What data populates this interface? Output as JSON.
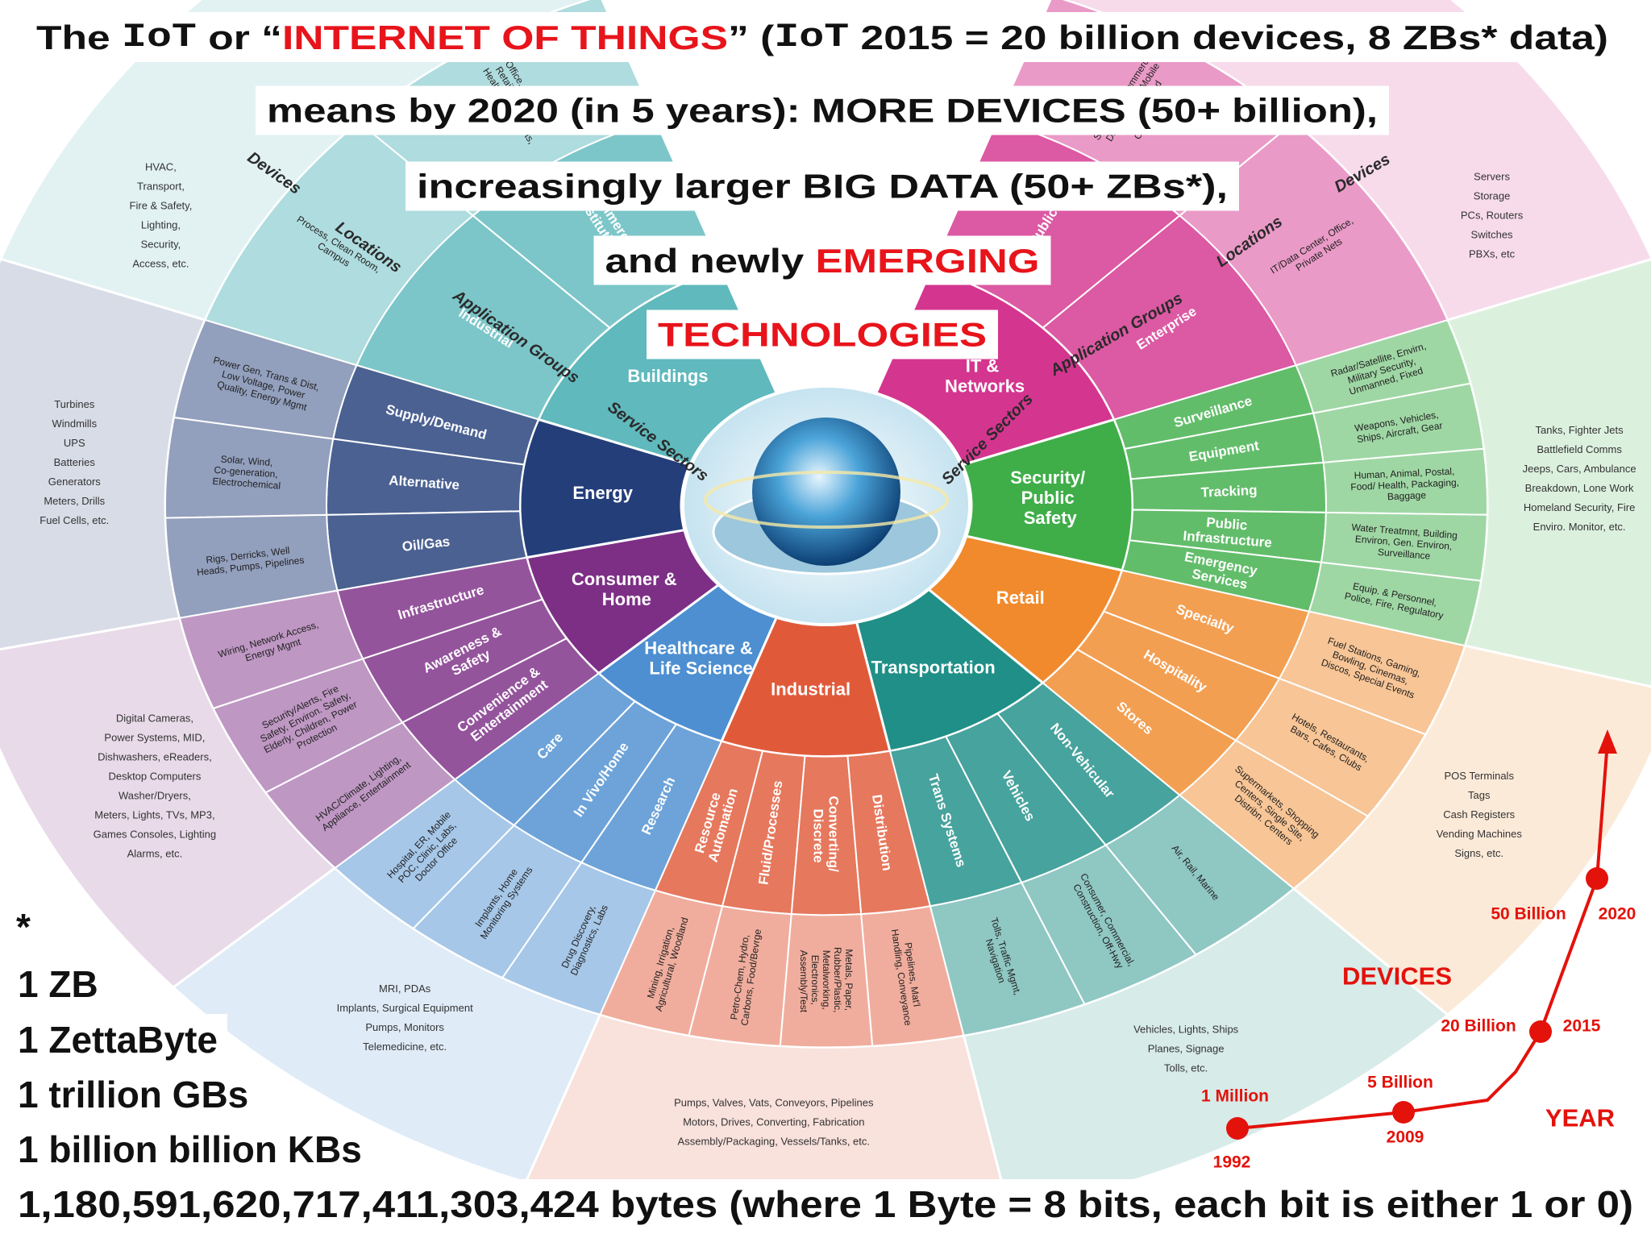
{
  "header": {
    "line1": [
      "The ",
      "IoT",
      " or “",
      "INTERNET OF THINGS",
      "” (",
      "IoT",
      " 2015 = 20 billion devices, 8 ZBs* data)"
    ],
    "line2": "means by 2020 (in 5 years): MORE DEVICES (50+ billion),",
    "line3": "increasingly larger BIG DATA (50+ ZBs*),",
    "line4": [
      "and newly ",
      "EMERGING"
    ],
    "line5": "TECHNOLOGIES"
  },
  "wheel": {
    "ring_labels": [
      "Service Sectors",
      "Application Groups",
      "Locations",
      "Devices"
    ],
    "sectors": [
      {
        "name": "Buildings",
        "groups": [
          "Commercial/ Institutional",
          "Industrial"
        ],
        "locations": [
          "Office, Education, Retail, Hospitality, Healthcare, Airports, Stadiums",
          "Process, Clean Room, Campus"
        ],
        "devices": [
          "HVAC,",
          "Transport,",
          "Fire & Safety,",
          "Lighting,",
          "Security,",
          "Access, etc."
        ]
      },
      {
        "name": "Energy",
        "groups": [
          "Supply/Demand",
          "Alternative",
          "Oil/Gas"
        ],
        "locations": [
          "Power Gen, Trans & Dist, Low Voltage, Power Quality, Energy Mgmt",
          "Solar, Wind, Co-generation, Electrochemical",
          "Rigs, Derricks, Well Heads, Pumps, Pipelines"
        ],
        "devices": [
          "Turbines",
          "Windmills",
          "UPS",
          "Batteries",
          "Generators",
          "Meters, Drills",
          "Fuel Cells, etc."
        ]
      },
      {
        "name": "Consumer & Home",
        "groups": [
          "Infrastructure",
          "Awareness & Safety",
          "Convenience & Entertainment"
        ],
        "locations": [
          "Wiring, Network Access, Energy Mgmt",
          "Security/Alerts, Fire Safety, Environ. Safety, Elderly, Children, Power Protection",
          "HVAC/Climate, Lighting, Appliance, Entertainment"
        ],
        "devices": [
          "Digital Cameras,",
          "Power Systems, MID,",
          "Dishwashers, eReaders,",
          "Desktop Computers",
          "Washer/Dryers,",
          "Meters, Lights, TVs, MP3,",
          "Games Consoles, Lighting",
          "Alarms, etc."
        ]
      },
      {
        "name": "Healthcare & Life Science",
        "groups": [
          "Care",
          "In Vivo/Home",
          "Research"
        ],
        "locations": [
          "Hospital, ER, Mobile POC, Clinic, Labs, Doctor Office",
          "Implants, Home Monitoring Systems",
          "Drug Discovery, Diagnostics, Labs"
        ],
        "devices": [
          "MRI, PDAs",
          "Implants, Surgical Equipment",
          "Pumps, Monitors",
          "Telemedicine, etc."
        ]
      },
      {
        "name": "Industrial",
        "groups": [
          "Resource Automation",
          "Fluid/Processes",
          "Converting/ Discrete",
          "Distribution"
        ],
        "locations": [
          "Mining, Irrigation, Agricultural, Woodland",
          "Petro-Chem, Hydro, Carbons, Food/Bevrge",
          "Metals, Paper, Rubber/Plastic, Metalworking, Electronics, Assembly/Test",
          "Pipelines, Mat'l Handling, Conveyance"
        ],
        "devices": [
          "Pumps, Valves, Vats, Conveyors, Pipelines",
          "Motors, Drives, Converting, Fabrication",
          "Assembly/Packaging, Vessels/Tanks, etc."
        ]
      },
      {
        "name": "Transportation",
        "groups": [
          "Trans Systems",
          "Vehicles",
          "Non-Vehicular"
        ],
        "locations": [
          "Tolls, Traffic Mgmt, Navigation",
          "Consumer, Commercial, Construction, Off-Hwy",
          "Air, Rail, Marine"
        ],
        "devices": [
          "Vehicles, Lights, Ships",
          "Planes, Signage",
          "Tolls, etc."
        ]
      },
      {
        "name": "Retail",
        "groups": [
          "Specialty",
          "Hospitality",
          "Stores"
        ],
        "locations": [
          "Fuel Stations, Gaming, Bowling, Cinemas, Discos, Special Events",
          "Hotels, Restaurants, Bars, Cafes, Clubs",
          "Supermarkets, Shopping Centers, Single Site, Distribn. Centers"
        ],
        "devices": [
          "POS Terminals",
          "Tags",
          "Cash Registers",
          "Vending Machines",
          "Signs, etc."
        ]
      },
      {
        "name": "Security/ Public Safety",
        "groups": [
          "Surveillance",
          "Equipment",
          "Tracking",
          "Public Infrastructure",
          "Emergency Services"
        ],
        "locations": [
          "Radar/Satellite, Envirn, Military Security, Unmanned, Fixed",
          "Weapons, Vehicles, Ships, Aircraft, Gear",
          "Human, Animal, Postal, Food/ Health, Packaging, Baggage",
          "Water Treatmnt, Building Environ, Gen. Environ, Surveillance",
          "Equip. & Personnel, Police, Fire, Regulatory"
        ],
        "devices": [
          "Tanks, Fighter Jets",
          "Battlefield Comms",
          "Jeeps, Cars, Ambulance",
          "Breakdown, Lone Work",
          "Homeland Security, Fire",
          "Enviro. Monitor, etc."
        ]
      },
      {
        "name": "IT & Networks",
        "groups": [
          "Public",
          "Enterprise"
        ],
        "locations": [
          "Services, E-Commerce, Data Centers, Mobile Carriers, Fixed Carriers, ISPs",
          "IT/Data Center, Office, Private Nets"
        ],
        "devices": [
          "Servers",
          "Storage",
          "PCs, Routers",
          "Switches",
          "PBXs, etc"
        ]
      }
    ]
  },
  "growth": {
    "series_label": "DEVICES",
    "axis_label": "YEAR",
    "points": [
      {
        "year": "1992",
        "devices": "1 Million"
      },
      {
        "year": "2009",
        "devices": "5 Billion"
      },
      {
        "year": "2015",
        "devices": "20 Billion"
      },
      {
        "year": "2020",
        "devices": "50 Billion"
      }
    ]
  },
  "footnote": {
    "marker": "*",
    "lines": [
      "1 ZB",
      "1 ZettaByte",
      "1 trillion GBs",
      "1 billion billion KBs"
    ],
    "bytes": "1,180,591,620,717,411,303,424 bytes (where 1 Byte = 8 bits, each bit is either 1 or 0)"
  }
}
